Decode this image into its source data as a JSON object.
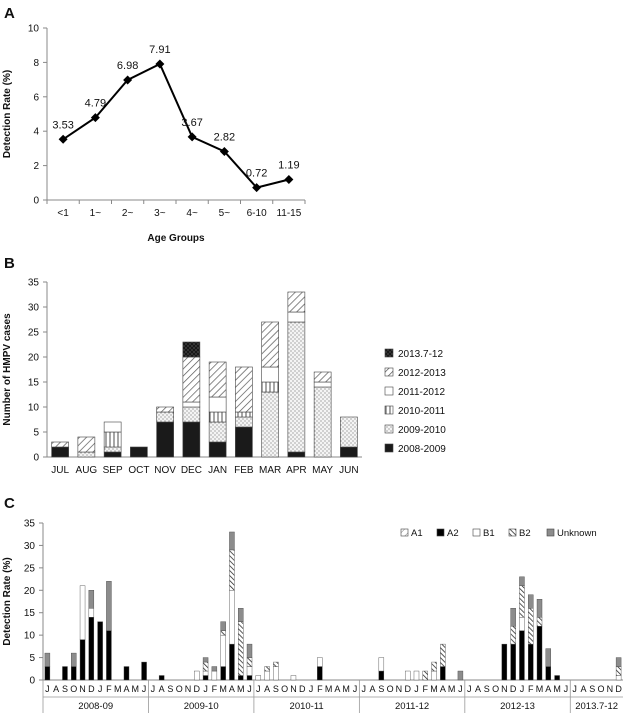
{
  "panels": [
    "A",
    "B",
    "C"
  ],
  "chart_data": [
    {
      "type": "line",
      "panel": "A",
      "categories": [
        "<1",
        "1~",
        "2~",
        "3~",
        "4~",
        "5~",
        "6-10",
        "11-15"
      ],
      "values": [
        3.53,
        4.79,
        6.98,
        7.91,
        3.67,
        2.82,
        0.72,
        1.19
      ],
      "value_labels": [
        "3.53",
        "4.79",
        "6.98",
        "7.91",
        "3.67",
        "2.82",
        "0.72",
        "1.19"
      ],
      "xlabel": "Age Groups",
      "ylabel": "Detection Rate (%)",
      "ylim": [
        0,
        10
      ],
      "yticks": [
        0,
        2,
        4,
        6,
        8,
        10
      ],
      "grid": false
    },
    {
      "type": "bar",
      "stacked": true,
      "panel": "B",
      "categories": [
        "JUL",
        "AUG",
        "SEP",
        "OCT",
        "NOV",
        "DEC",
        "JAN",
        "FEB",
        "MAR",
        "APR",
        "MAY",
        "JUN"
      ],
      "ylabel": "Number of HMPV cases",
      "ylim": [
        0,
        35
      ],
      "yticks": [
        0,
        5,
        10,
        15,
        20,
        25,
        30,
        35
      ],
      "legend_position": "right",
      "series": [
        {
          "name": "2008-2009",
          "color": "#1a1a1a",
          "pattern": "solid",
          "values": [
            2,
            0,
            1,
            2,
            7,
            7,
            3,
            6,
            0,
            1,
            0,
            2
          ]
        },
        {
          "name": "2009-2010",
          "color": "#e8e8e8",
          "pattern": "dots",
          "values": [
            0,
            1,
            1,
            0,
            2,
            3,
            4,
            2,
            13,
            26,
            14,
            6
          ]
        },
        {
          "name": "2010-2011",
          "color": "#ffffff",
          "pattern": "vertical",
          "values": [
            0,
            0,
            3,
            0,
            0,
            0,
            2,
            1,
            2,
            0,
            0,
            0
          ]
        },
        {
          "name": "2011-2012",
          "color": "#ffffff",
          "pattern": "none",
          "values": [
            0,
            0,
            2,
            0,
            0,
            1,
            3,
            0,
            3,
            2,
            1,
            0
          ]
        },
        {
          "name": "2012-2013",
          "color": "#ffffff",
          "pattern": "diagonal",
          "values": [
            1,
            3,
            0,
            0,
            1,
            9,
            7,
            9,
            9,
            4,
            2,
            0
          ]
        },
        {
          "name": "2013.7-12",
          "color": "#404040",
          "pattern": "crosshatch",
          "values": [
            0,
            0,
            0,
            0,
            0,
            3,
            0,
            0,
            0,
            0,
            0,
            0
          ]
        }
      ]
    },
    {
      "type": "bar",
      "stacked": true,
      "panel": "C",
      "ylabel": "Detection Rate (%)",
      "ylim": [
        0,
        35
      ],
      "yticks": [
        0,
        5,
        10,
        15,
        20,
        25,
        30,
        35
      ],
      "legend_position": "top-right",
      "month_letters": [
        "J",
        "A",
        "S",
        "O",
        "N",
        "D",
        "J",
        "F",
        "M",
        "A",
        "M",
        "J"
      ],
      "seasons": [
        "2008-09",
        "2009-10",
        "2010-11",
        "2011-12",
        "2012-13",
        "2013.7-12"
      ],
      "series": [
        {
          "name": "A1",
          "color": "#ffffff",
          "pattern": "sparse-diagonal"
        },
        {
          "name": "A2",
          "color": "#000000",
          "pattern": "solid"
        },
        {
          "name": "B1",
          "color": "#ffffff",
          "pattern": "none"
        },
        {
          "name": "B2",
          "color": "#ffffff",
          "pattern": "dense-diagonal"
        },
        {
          "name": "Unknown",
          "color": "#8c8c8c",
          "pattern": "solid"
        }
      ],
      "data": [
        [
          [
            0,
            3,
            0,
            0,
            3
          ],
          [
            0,
            0,
            0,
            0,
            0
          ],
          [
            0,
            3,
            0,
            0,
            0
          ],
          [
            0,
            3,
            0,
            0,
            3
          ],
          [
            0,
            9,
            12,
            0,
            0
          ],
          [
            0,
            14,
            2,
            0,
            4
          ],
          [
            0,
            13,
            0,
            0,
            0
          ],
          [
            0,
            11,
            0,
            0,
            11
          ],
          [
            0,
            0,
            0,
            0,
            0
          ],
          [
            0,
            3,
            0,
            0,
            0
          ],
          [
            0,
            0,
            0,
            0,
            0
          ],
          [
            0,
            4,
            0,
            0,
            0
          ]
        ],
        [
          [
            0,
            0,
            0,
            0,
            0
          ],
          [
            0,
            1,
            0,
            0,
            0
          ],
          [
            0,
            0,
            0,
            0,
            0
          ],
          [
            0,
            0,
            0,
            0,
            0
          ],
          [
            0,
            0,
            0,
            0,
            0
          ],
          [
            0,
            0,
            2,
            0,
            0
          ],
          [
            0,
            1,
            1,
            2,
            1
          ],
          [
            0,
            0,
            2,
            0,
            1
          ],
          [
            0,
            3,
            7,
            1,
            2
          ],
          [
            0,
            8,
            12,
            9,
            4
          ],
          [
            0,
            1,
            0,
            12,
            3
          ],
          [
            0,
            1,
            2,
            2,
            3
          ]
        ],
        [
          [
            0,
            0,
            1,
            0,
            0
          ],
          [
            0,
            0,
            2,
            1,
            0
          ],
          [
            0,
            0,
            3,
            1,
            0
          ],
          [
            0,
            0,
            0,
            0,
            0
          ],
          [
            0,
            0,
            1,
            0,
            0
          ],
          [
            0,
            0,
            0,
            0,
            0
          ],
          [
            0,
            0,
            0,
            0,
            0
          ],
          [
            0,
            3,
            2,
            0,
            0
          ],
          [
            0,
            0,
            0,
            0,
            0
          ],
          [
            0,
            0,
            0,
            0,
            0
          ],
          [
            0,
            0,
            0,
            0,
            0
          ],
          [
            0,
            0,
            0,
            0,
            0
          ]
        ],
        [
          [
            0,
            0,
            0,
            0,
            0
          ],
          [
            0,
            0,
            0,
            0,
            0
          ],
          [
            0,
            2,
            3,
            0,
            0
          ],
          [
            0,
            0,
            0,
            0,
            0
          ],
          [
            0,
            0,
            0,
            0,
            0
          ],
          [
            0,
            0,
            2,
            0,
            0
          ],
          [
            0,
            0,
            2,
            0,
            0
          ],
          [
            0,
            0,
            0,
            2,
            0
          ],
          [
            0,
            0,
            2,
            2,
            0
          ],
          [
            0,
            3,
            0,
            5,
            0
          ],
          [
            0,
            0,
            0,
            0,
            0
          ],
          [
            0,
            0,
            0,
            0,
            2
          ]
        ],
        [
          [
            0,
            0,
            0,
            0,
            0
          ],
          [
            0,
            0,
            0,
            0,
            0
          ],
          [
            0,
            0,
            0,
            0,
            0
          ],
          [
            0,
            0,
            0,
            0,
            0
          ],
          [
            0,
            8,
            0,
            0,
            0
          ],
          [
            0,
            8,
            0,
            4,
            4
          ],
          [
            0,
            11,
            3,
            7,
            2
          ],
          [
            0,
            8,
            0,
            8,
            3
          ],
          [
            0,
            12,
            0,
            2,
            4
          ],
          [
            0,
            3,
            0,
            0,
            4
          ],
          [
            0,
            1,
            0,
            0,
            0
          ],
          [
            0,
            0,
            0,
            0,
            0
          ]
        ],
        [
          [
            0,
            0,
            0,
            0,
            0
          ],
          [
            0,
            0,
            0,
            0,
            0
          ],
          [
            0,
            0,
            0,
            0,
            0
          ],
          [
            0,
            0,
            0,
            0,
            0
          ],
          [
            0,
            0,
            0,
            0,
            0
          ],
          [
            0,
            0,
            1,
            2,
            2
          ]
        ]
      ]
    }
  ]
}
